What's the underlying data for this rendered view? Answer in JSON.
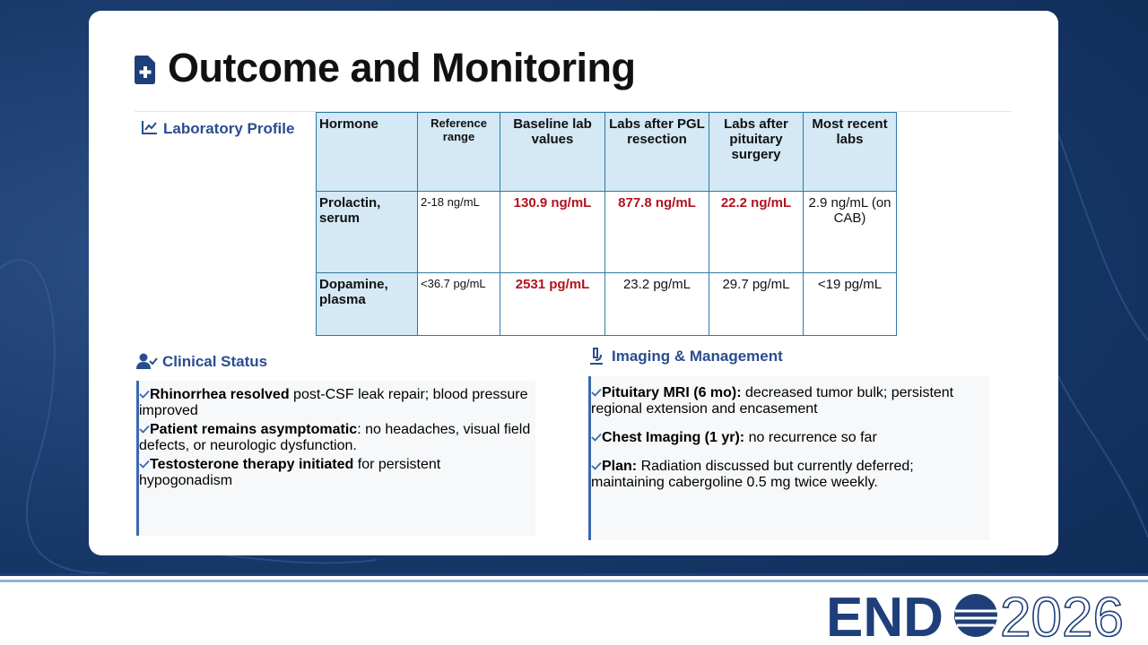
{
  "title": "Outcome and Monitoring",
  "lab_section": {
    "heading": "Laboratory Profile",
    "table": {
      "header": [
        "Hormone",
        "Reference range",
        "Baseline lab values",
        "Labs after PGL resection",
        "Labs after pituitary surgery",
        "Most recent labs"
      ],
      "rows": [
        [
          {
            "text": "Prolactin, serum",
            "highlight": false
          },
          {
            "text": "2-18 ng/mL",
            "highlight": false
          },
          {
            "text": "130.9 ng/mL",
            "highlight": true
          },
          {
            "text": "877.8 ng/mL",
            "highlight": true
          },
          {
            "text": "22.2 ng/mL",
            "highlight": true
          },
          {
            "text": "2.9 ng/mL (on CAB)",
            "highlight": false
          }
        ],
        [
          {
            "text": "Dopamine, plasma",
            "highlight": false
          },
          {
            "text": "<36.7 pg/mL",
            "highlight": false
          },
          {
            "text": "2531 pg/mL",
            "highlight": true
          },
          {
            "text": "23.2 pg/mL",
            "highlight": false
          },
          {
            "text": "29.7 pg/mL",
            "highlight": false
          },
          {
            "text": "<19 pg/mL",
            "highlight": false
          }
        ]
      ]
    }
  },
  "clinical_status": {
    "heading": "Clinical Status",
    "items": [
      {
        "bold": "Rhinorrhea resolved",
        "text": " post-CSF leak repair; blood pressure improved"
      },
      {
        "bold": "Patient remains asymptomatic",
        "text": ": no headaches, visual field defects, or neurologic dysfunction."
      },
      {
        "bold": "Testosterone therapy initiated",
        "text": " for persistent hypogonadism"
      }
    ]
  },
  "imaging": {
    "heading": "Imaging & Management",
    "items": [
      {
        "bold": "Pituitary MRI (6 mo):",
        "text": " decreased tumor bulk; persistent regional extension and encasement"
      },
      {
        "bold": "Chest Imaging (1 yr):",
        "text": " no recurrence so far"
      },
      {
        "bold": "Plan:",
        "text": " Radiation discussed but currently deferred; maintaining cabergoline 0.5 mg twice weekly."
      }
    ]
  },
  "logo": {
    "left": "END",
    "right": "2026"
  }
}
